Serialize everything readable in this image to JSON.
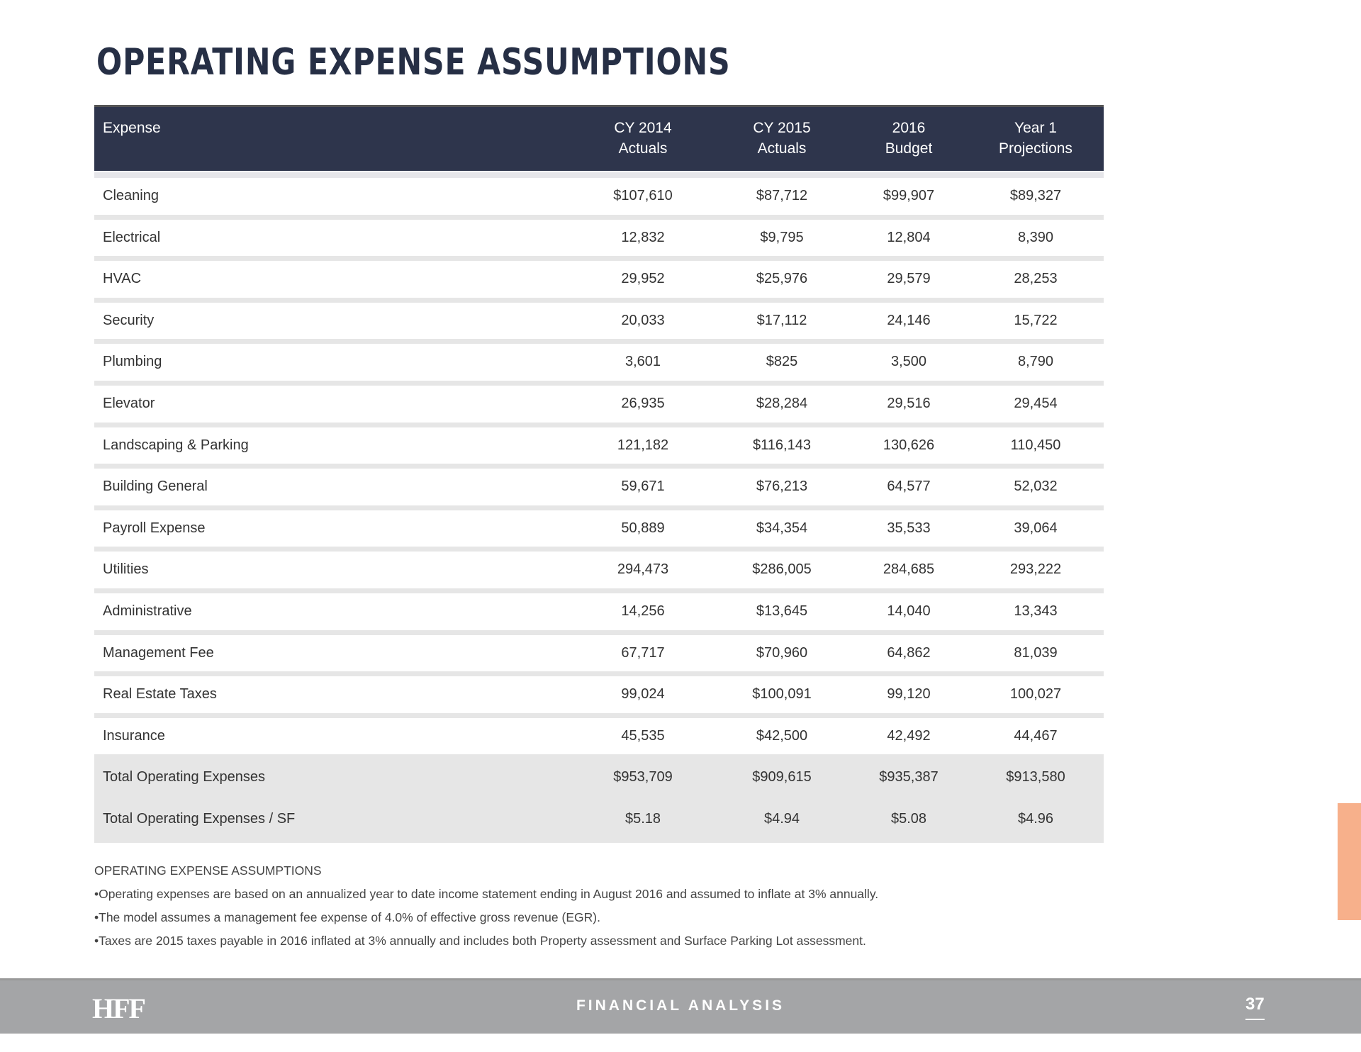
{
  "title": "OPERATING EXPENSE ASSUMPTIONS",
  "table": {
    "headers": [
      [
        "Expense",
        ""
      ],
      [
        "CY 2014",
        "Actuals"
      ],
      [
        "CY 2015",
        "Actuals"
      ],
      [
        "2016",
        "Budget"
      ],
      [
        "Year 1",
        "Projections"
      ]
    ],
    "rows": [
      [
        "Cleaning",
        "$107,610",
        "$87,712",
        "$99,907",
        "$89,327"
      ],
      [
        "Electrical",
        "12,832",
        "$9,795",
        "12,804",
        "8,390"
      ],
      [
        "HVAC",
        "29,952",
        "$25,976",
        "29,579",
        "28,253"
      ],
      [
        "Security",
        "20,033",
        "$17,112",
        "24,146",
        "15,722"
      ],
      [
        "Plumbing",
        "3,601",
        "$825",
        "3,500",
        "8,790"
      ],
      [
        "Elevator",
        "26,935",
        "$28,284",
        "29,516",
        "29,454"
      ],
      [
        "Landscaping & Parking",
        "121,182",
        "$116,143",
        "130,626",
        "110,450"
      ],
      [
        "Building General",
        "59,671",
        "$76,213",
        "64,577",
        "52,032"
      ],
      [
        "Payroll Expense",
        "50,889",
        "$34,354",
        "35,533",
        "39,064"
      ],
      [
        "Utilities",
        "294,473",
        "$286,005",
        "284,685",
        "293,222"
      ],
      [
        "Administrative",
        "14,256",
        "$13,645",
        "14,040",
        "13,343"
      ],
      [
        "Management Fee",
        "67,717",
        "$70,960",
        "64,862",
        "81,039"
      ],
      [
        "Real Estate Taxes",
        "99,024",
        "$100,091",
        "99,120",
        "100,027"
      ],
      [
        "Insurance",
        "45,535",
        "$42,500",
        "42,492",
        "44,467"
      ]
    ],
    "totals": [
      [
        "Total Operating Expenses",
        "$953,709",
        "$909,615",
        "$935,387",
        "$913,580"
      ],
      [
        "Total Operating Expenses / SF",
        "$5.18",
        "$4.94",
        "$5.08",
        "$4.96"
      ]
    ]
  },
  "notes": {
    "heading": "OPERATING EXPENSE ASSUMPTIONS",
    "bullets": [
      "•Operating expenses are based on an annualized year to date income statement ending in August 2016 and assumed to inflate at 3% annually.",
      "•The model assumes a management fee expense of 4.0% of effective gross revenue (EGR).",
      "•Taxes are 2015 taxes payable in 2016 inflated at 3% annually and includes both Property assessment and Surface Parking Lot assessment."
    ]
  },
  "footer": {
    "logo": "HFF",
    "section": "FINANCIAL ANALYSIS",
    "page": "37"
  },
  "colors": {
    "header": "#2e354c",
    "accent_tab": "#f7b08b",
    "footer": "#a4a5a7"
  }
}
